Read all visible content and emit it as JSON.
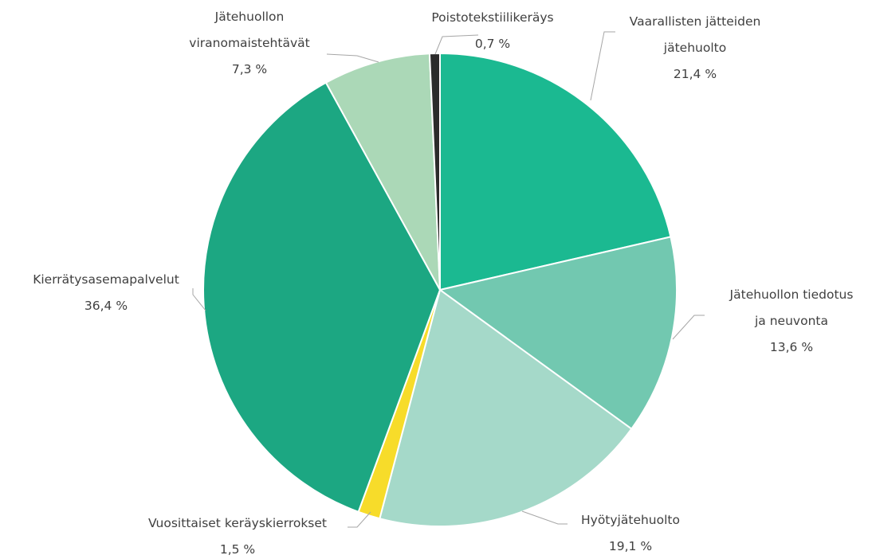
{
  "chart_data": {
    "type": "pie",
    "title": "",
    "legend": "none",
    "slices": [
      {
        "label": "Vaarallisten jätteiden jätehuolto",
        "label_lines": [
          "Vaarallisten jätteiden",
          "jätehuolto"
        ],
        "value": 21.4,
        "value_label": "21,4 %",
        "color": "#1bb991"
      },
      {
        "label": "Jätehuollon tiedotus ja neuvonta",
        "label_lines": [
          "Jätehuollon tiedotus",
          "ja neuvonta"
        ],
        "value": 13.6,
        "value_label": "13,6 %",
        "color": "#72c8b0"
      },
      {
        "label": "Hyötyjätehuolto",
        "label_lines": [
          "Hyötyjätehuolto"
        ],
        "value": 19.1,
        "value_label": "19,1 %",
        "color": "#a5d9c9"
      },
      {
        "label": "Vuosittaiset keräyskierrokset",
        "label_lines": [
          "Vuosittaiset keräyskierrokset"
        ],
        "value": 1.5,
        "value_label": "1,5 %",
        "color": "#f7dc2a"
      },
      {
        "label": "Kierrätysasemapalvelut",
        "label_lines": [
          "Kierrätysasemapalvelut"
        ],
        "value": 36.4,
        "value_label": "36,4 %",
        "color": "#1ca782"
      },
      {
        "label": "Jätehuollon viranomaistehtävät",
        "label_lines": [
          "Jätehuollon",
          "viranomaistehtävät"
        ],
        "value": 7.3,
        "value_label": "7,3 %",
        "color": "#abd8b7"
      },
      {
        "label": "Poistotekstiilikeräys",
        "label_lines": [
          "Poistotekstiilikeräys"
        ],
        "value": 0.7,
        "value_label": "0,7 %",
        "color": "#2b2b2b"
      }
    ]
  }
}
